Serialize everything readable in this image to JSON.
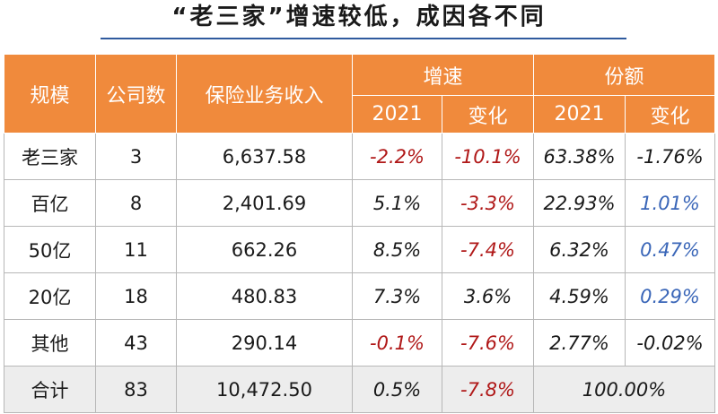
{
  "title": "“老三家”增速较低，成因各不同",
  "headers": {
    "scale": "规模",
    "company_count": "公司数",
    "premium_income": "保险业务收入",
    "growth": "增速",
    "share": "份额",
    "year": "2021",
    "change": "变化"
  },
  "rows": [
    {
      "scale": "老三家",
      "count": "3",
      "income": "6,637.58",
      "growth_2021": "-2.2%",
      "growth_change": "-10.1%",
      "share_2021": "63.38%",
      "share_change": "-1.76%"
    },
    {
      "scale": "百亿",
      "count": "8",
      "income": "2,401.69",
      "growth_2021": "5.1%",
      "growth_change": "-3.3%",
      "share_2021": "22.93%",
      "share_change": "1.01%"
    },
    {
      "scale": "50亿",
      "count": "11",
      "income": "662.26",
      "growth_2021": "8.5%",
      "growth_change": "-7.4%",
      "share_2021": "6.32%",
      "share_change": "0.47%"
    },
    {
      "scale": "20亿",
      "count": "18",
      "income": "480.83",
      "growth_2021": "7.3%",
      "growth_change": "3.6%",
      "share_2021": "4.59%",
      "share_change": "0.29%"
    },
    {
      "scale": "其他",
      "count": "43",
      "income": "290.14",
      "growth_2021": "-0.1%",
      "growth_change": "-7.6%",
      "share_2021": "2.77%",
      "share_change": "-0.02%"
    }
  ],
  "total": {
    "scale": "合计",
    "count": "83",
    "income": "10,472.50",
    "growth_2021": "0.5%",
    "growth_change": "-7.8%",
    "share": "100.00%"
  },
  "colors": {
    "header_bg": "#f08a3c",
    "negative_red": "#b01818",
    "positive_blue": "#3a66b8",
    "total_bg": "#ededed",
    "title_rule": "#2f5a9e"
  }
}
